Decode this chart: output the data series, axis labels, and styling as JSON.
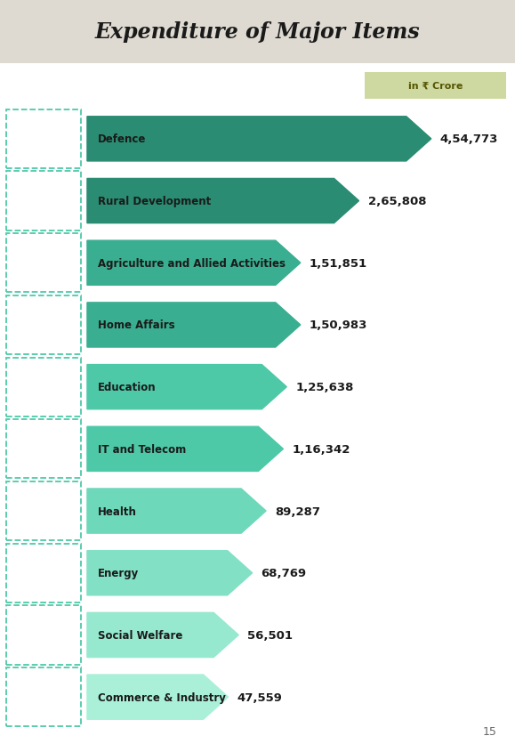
{
  "title": "Expenditure of Major Items",
  "unit_label": "in ₹ Crore",
  "header_bg_color": "#dedad2",
  "body_bg_color": "#ffffff",
  "title_color": "#1a1a1a",
  "categories": [
    "Defence",
    "Rural Development",
    "Agriculture and Allied Activities",
    "Home Affairs",
    "Education",
    "IT and Telecom",
    "Health",
    "Energy",
    "Social Welfare",
    "Commerce & Industry"
  ],
  "values": [
    454773,
    265808,
    151851,
    150983,
    125638,
    116342,
    89287,
    68769,
    56501,
    47559
  ],
  "value_labels": [
    "4,54,773",
    "2,65,808",
    "1,51,851",
    "1,50,983",
    "1,25,638",
    "1,16,342",
    "89,287",
    "68,769",
    "56,501",
    "47,559"
  ],
  "bar_colors": [
    "#2a8c72",
    "#2a8c72",
    "#3aae90",
    "#3aae90",
    "#4ec9a8",
    "#4ec9a8",
    "#6ed8ba",
    "#82e0c4",
    "#96e8ce",
    "#aaf0d8"
  ],
  "icon_border_color": "#4ec9a8",
  "unit_box_color": "#cdd9a0",
  "unit_text_color": "#555500",
  "value_text_color": "#1a1a1a",
  "label_text_color": "#1a1a1a",
  "page_number": "15",
  "bar_proportions": [
    1.0,
    0.79,
    0.62,
    0.62,
    0.58,
    0.57,
    0.52,
    0.48,
    0.44,
    0.41
  ]
}
